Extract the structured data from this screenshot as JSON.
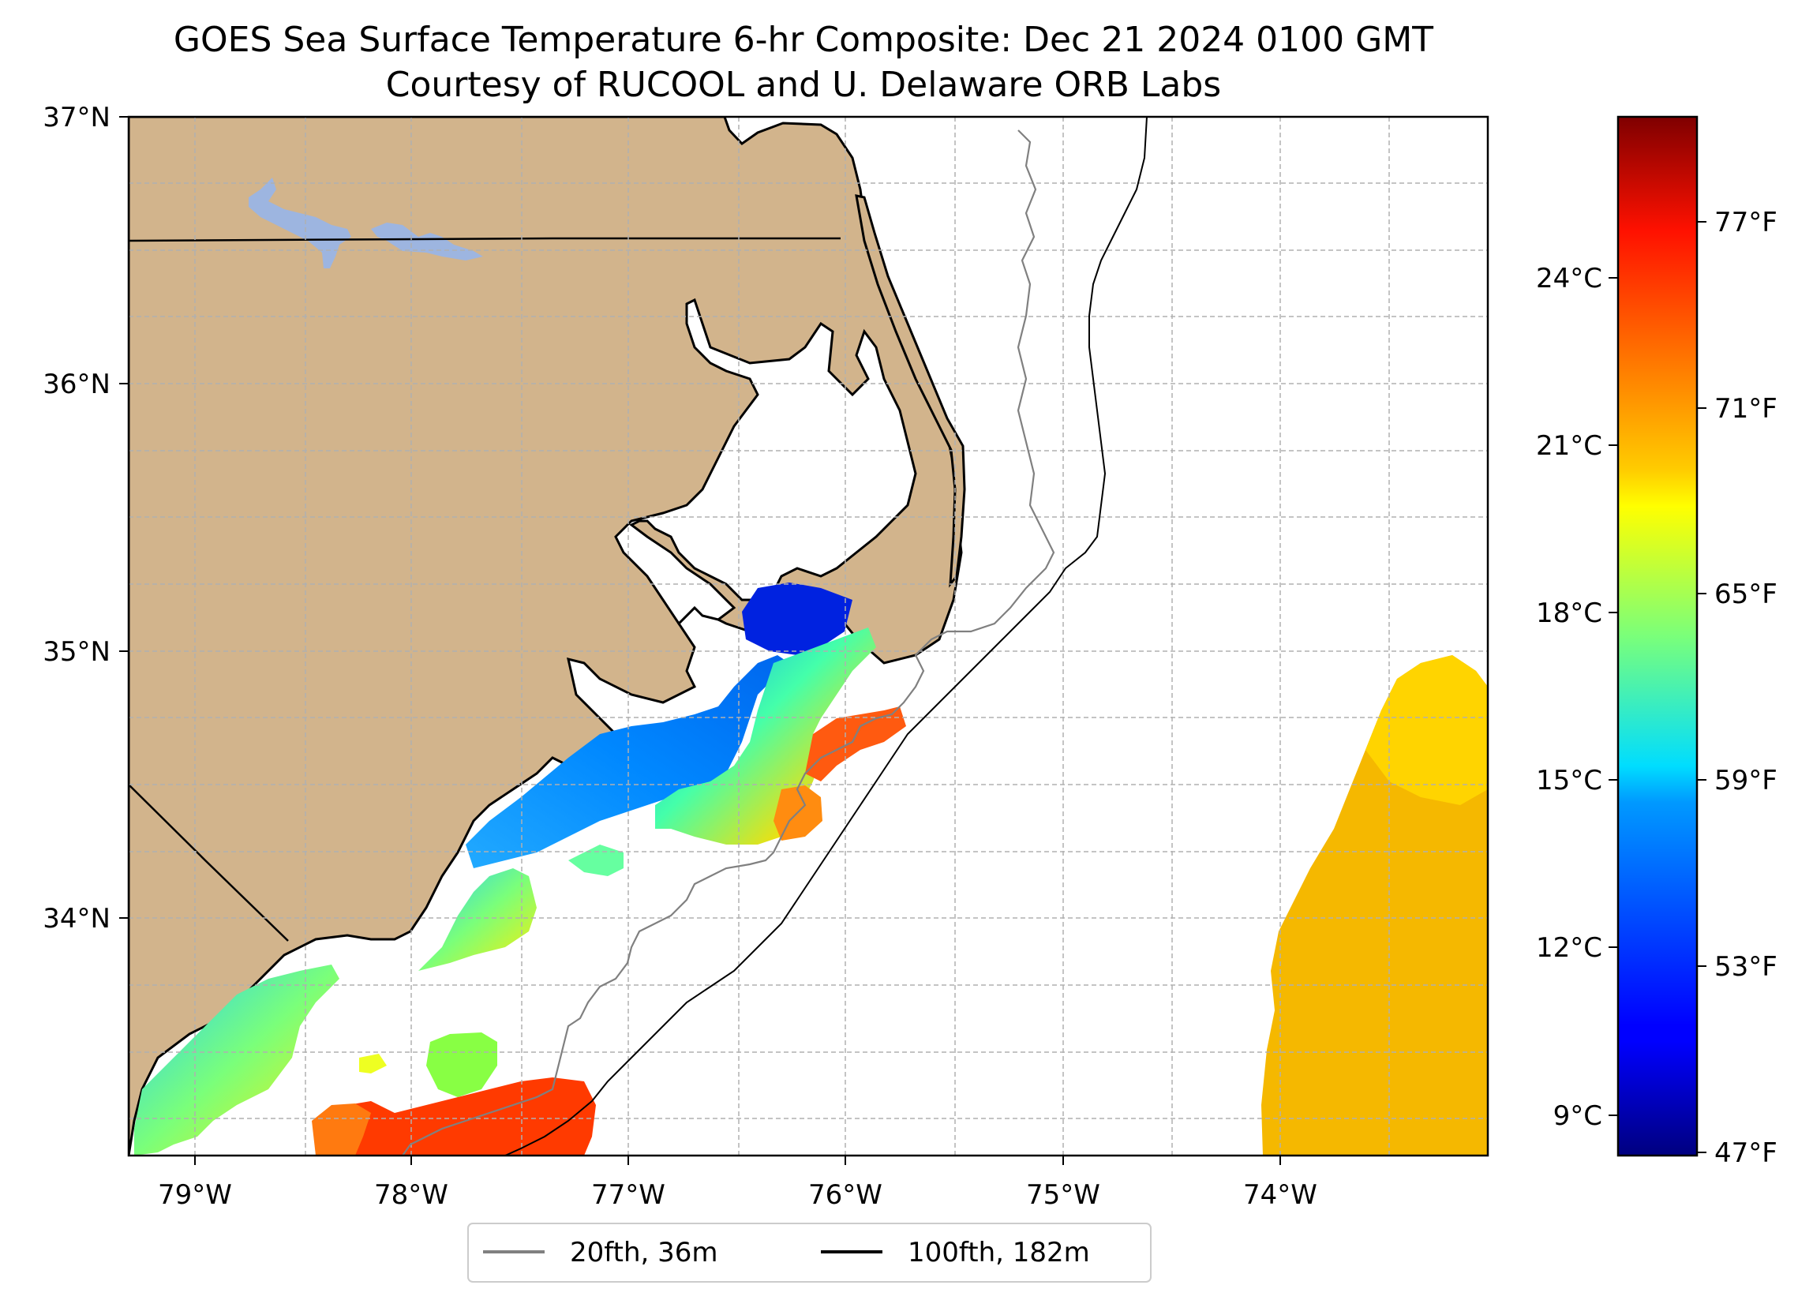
{
  "title": {
    "line1": "GOES Sea Surface Temperature 6-hr Composite: Dec 21 2024 0100 GMT",
    "line2": "Courtesy of RUCOOL and U. Delaware ORB Labs"
  },
  "map": {
    "lon_range": [
      -79.3,
      -73.05
    ],
    "lat_range": [
      33.1,
      37.0
    ],
    "lon_ticks": [
      {
        "value": -79,
        "label": "79°W"
      },
      {
        "value": -78,
        "label": "78°W"
      },
      {
        "value": -77,
        "label": "77°W"
      },
      {
        "value": -76,
        "label": "76°W"
      },
      {
        "value": -75,
        "label": "75°W"
      },
      {
        "value": -74,
        "label": "74°W"
      }
    ],
    "lat_ticks": [
      {
        "value": 37,
        "label": "37°N"
      },
      {
        "value": 36,
        "label": "36°N"
      },
      {
        "value": 35,
        "label": "35°N"
      },
      {
        "value": 34,
        "label": "34°N"
      }
    ],
    "colors": {
      "land": "#d2b48c",
      "lake": "#9db5e0",
      "coast": "#000000",
      "grid": "#b0b0b0",
      "isobath_20fth": "#808080",
      "isobath_100fth": "#000000"
    }
  },
  "colorbar": {
    "celsius_ticks": [
      {
        "value": 9,
        "label": "9°C"
      },
      {
        "value": 12,
        "label": "12°C"
      },
      {
        "value": 15,
        "label": "15°C"
      },
      {
        "value": 18,
        "label": "18°C"
      },
      {
        "value": 21,
        "label": "21°C"
      },
      {
        "value": 24,
        "label": "24°C"
      }
    ],
    "fahrenheit_ticks": [
      {
        "value": 47,
        "label": "47°F"
      },
      {
        "value": 53,
        "label": "53°F"
      },
      {
        "value": 59,
        "label": "59°F"
      },
      {
        "value": 65,
        "label": "65°F"
      },
      {
        "value": 71,
        "label": "71°F"
      },
      {
        "value": 77,
        "label": "77°F"
      }
    ],
    "range_celsius": [
      8.33,
      27.0
    ],
    "colormap": "jet"
  },
  "legend": {
    "items": [
      {
        "label": "20fth, 36m",
        "color": "#808080"
      },
      {
        "label": "100fth, 182m",
        "color": "#000000"
      }
    ]
  }
}
